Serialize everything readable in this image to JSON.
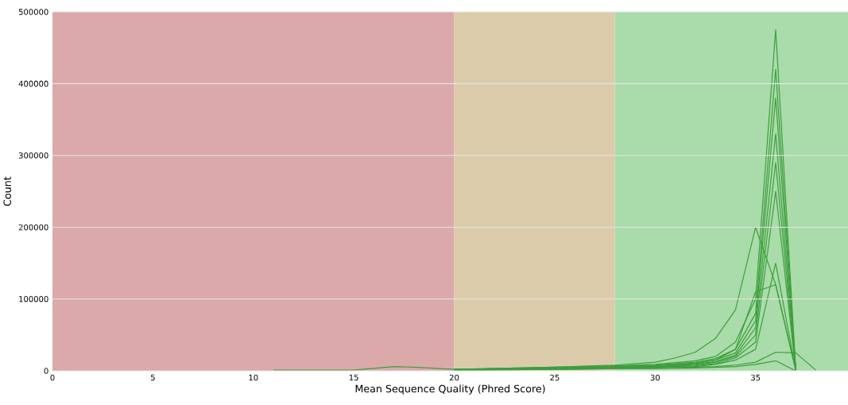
{
  "chart_data": {
    "type": "line",
    "xlabel": "Mean Sequence Quality (Phred Score)",
    "ylabel": "Count",
    "xlim": [
      0,
      39.6
    ],
    "ylim": [
      0,
      500000
    ],
    "xticks": [
      0,
      5,
      10,
      15,
      20,
      25,
      30,
      35
    ],
    "yticks": [
      0,
      100000,
      200000,
      300000,
      400000,
      500000
    ],
    "grid": "y",
    "bands": [
      {
        "axis": "x",
        "from": 0,
        "to": 20,
        "color": "#dba9aa"
      },
      {
        "axis": "x",
        "from": 20,
        "to": 28,
        "color": "#dbcbaa"
      },
      {
        "axis": "x",
        "from": 28,
        "to": 39.6,
        "color": "#aadbaa"
      }
    ],
    "series": [
      {
        "color": "#3d9e3d",
        "x": [
          11,
          15,
          17,
          18,
          20,
          25,
          28,
          30,
          32,
          33,
          34,
          35,
          36,
          37
        ],
        "values": [
          1000,
          1000,
          6000,
          5000,
          2000,
          5000,
          7000,
          9000,
          14000,
          20000,
          40000,
          100000,
          475000,
          2000
        ]
      },
      {
        "color": "#3d9e3d",
        "x": [
          20,
          25,
          28,
          30,
          32,
          33,
          34,
          35,
          36,
          37
        ],
        "values": [
          2000,
          4000,
          6000,
          8000,
          12000,
          17000,
          30000,
          80000,
          420000,
          1000
        ]
      },
      {
        "color": "#3d9e3d",
        "x": [
          20,
          25,
          28,
          30,
          32,
          33,
          34,
          35,
          36,
          37
        ],
        "values": [
          2000,
          4000,
          6000,
          7000,
          11000,
          15000,
          25000,
          70000,
          380000,
          1000
        ]
      },
      {
        "color": "#3d9e3d",
        "x": [
          20,
          25,
          28,
          30,
          32,
          33,
          34,
          35,
          36,
          37
        ],
        "values": [
          1000,
          3000,
          5000,
          6000,
          9000,
          13000,
          22000,
          60000,
          330000,
          1000
        ]
      },
      {
        "color": "#3d9e3d",
        "x": [
          20,
          25,
          28,
          30,
          32,
          33,
          34,
          35,
          36,
          37
        ],
        "values": [
          1000,
          3000,
          5000,
          6000,
          8000,
          12000,
          20000,
          50000,
          290000,
          1000
        ]
      },
      {
        "color": "#3d9e3d",
        "x": [
          20,
          25,
          28,
          30,
          32,
          33,
          34,
          35,
          36,
          37
        ],
        "values": [
          1000,
          3000,
          4000,
          5000,
          7000,
          10000,
          18000,
          40000,
          250000,
          1000
        ]
      },
      {
        "color": "#3d9e3d",
        "x": [
          20,
          25,
          28,
          30,
          32,
          33,
          34,
          35,
          36,
          37
        ],
        "values": [
          1000,
          2000,
          4000,
          5000,
          6000,
          9000,
          15000,
          30000,
          150000,
          1000
        ]
      },
      {
        "color": "#3d9e3d",
        "x": [
          20,
          25,
          28,
          30,
          31,
          32,
          33,
          34,
          35,
          36,
          37
        ],
        "values": [
          2000,
          5000,
          8000,
          12000,
          18000,
          26000,
          45000,
          85000,
          200000,
          120000,
          1000
        ]
      },
      {
        "color": "#3d9e3d",
        "x": [
          20,
          25,
          28,
          30,
          32,
          33,
          34,
          35,
          36,
          37,
          38
        ],
        "values": [
          1000,
          2000,
          3000,
          4000,
          5000,
          6000,
          8000,
          12000,
          26000,
          25000,
          1000
        ]
      },
      {
        "color": "#3d9e3d",
        "x": [
          21,
          25,
          28,
          30,
          32,
          33,
          34,
          35,
          36,
          37
        ],
        "values": [
          1000,
          2000,
          3000,
          3000,
          4000,
          5000,
          6000,
          9000,
          14000,
          0
        ]
      },
      {
        "color": "#3d9e3d",
        "x": [
          20,
          25,
          28,
          30,
          32,
          33,
          34,
          35,
          36,
          37
        ],
        "values": [
          2000,
          4000,
          5000,
          7000,
          10000,
          15000,
          30000,
          110000,
          120000,
          1000
        ]
      }
    ]
  }
}
